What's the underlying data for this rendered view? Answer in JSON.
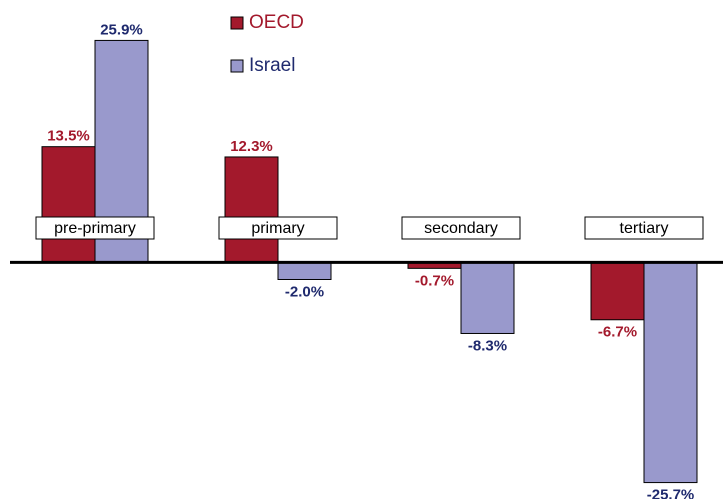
{
  "chart_data": {
    "type": "bar",
    "categories": [
      "pre-primary",
      "primary",
      "secondary",
      "tertiary"
    ],
    "series": [
      {
        "name": "OECD",
        "color": "#a3192c",
        "label_color": "#a3192c",
        "values": [
          13.5,
          12.3,
          -0.7,
          -6.7
        ],
        "value_labels": [
          "13.5%",
          "12.3%",
          "-0.7%",
          "-6.7%"
        ]
      },
      {
        "name": "Israel",
        "color": "#9999cc",
        "label_color": "#1f2a6e",
        "values": [
          25.9,
          -2.0,
          -8.3,
          -25.7
        ],
        "value_labels": [
          "25.9%",
          "-2.0%",
          "-8.3%",
          "-25.7%"
        ]
      }
    ],
    "ylim": [
      -27.5,
      30.5
    ]
  }
}
